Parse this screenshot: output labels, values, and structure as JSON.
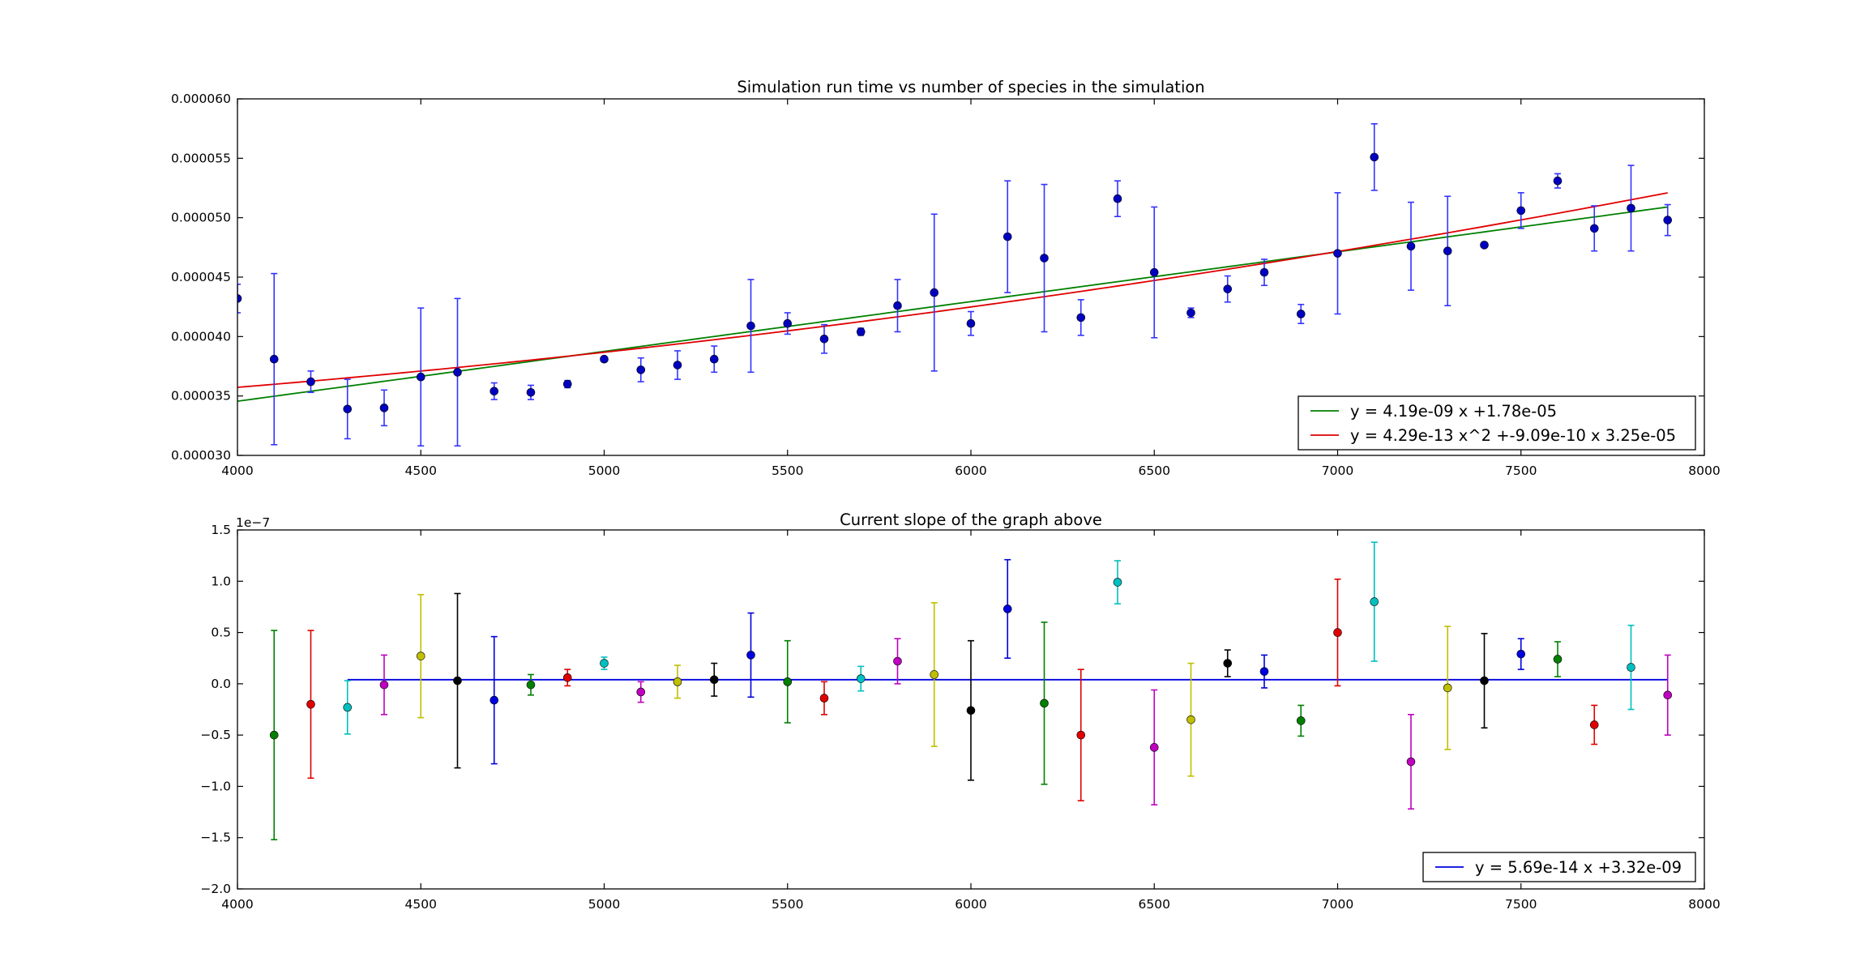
{
  "chart_data": [
    {
      "type": "scatter",
      "title": "Simulation run time vs number of species in the simulation",
      "xlabel": "",
      "ylabel": "",
      "xlim": [
        4000,
        8000
      ],
      "ylim": [
        3e-05,
        6e-05
      ],
      "xticks": [
        "4000",
        "4500",
        "5000",
        "5500",
        "6000",
        "6500",
        "7000",
        "7500",
        "8000"
      ],
      "yticks": [
        "0.000030",
        "0.000035",
        "0.000040",
        "0.000045",
        "0.000050",
        "0.000055",
        "0.000060"
      ],
      "grid": false,
      "legend_position": "bottom-right",
      "series": [
        {
          "marker_color": "#0000bf",
          "error_color": "#3333ff",
          "x": [
            4000,
            4100,
            4200,
            4300,
            4400,
            4500,
            4600,
            4700,
            4800,
            4900,
            5000,
            5100,
            5200,
            5300,
            5400,
            5500,
            5600,
            5700,
            5800,
            5900,
            6000,
            6100,
            6200,
            6300,
            6400,
            6500,
            6600,
            6700,
            6800,
            6900,
            7000,
            7100,
            7200,
            7300,
            7400,
            7500,
            7600,
            7700,
            7800,
            7900
          ],
          "y": [
            4.32e-05,
            3.81e-05,
            3.62e-05,
            3.39e-05,
            3.4e-05,
            3.66e-05,
            3.7e-05,
            3.54e-05,
            3.53e-05,
            3.6e-05,
            3.81e-05,
            3.72e-05,
            3.76e-05,
            3.81e-05,
            4.09e-05,
            4.11e-05,
            3.98e-05,
            4.04e-05,
            4.26e-05,
            4.37e-05,
            4.11e-05,
            4.84e-05,
            4.66e-05,
            4.16e-05,
            5.16e-05,
            4.54e-05,
            4.2e-05,
            4.4e-05,
            4.54e-05,
            4.19e-05,
            4.7e-05,
            5.51e-05,
            4.76e-05,
            4.72e-05,
            4.77e-05,
            5.06e-05,
            5.31e-05,
            4.91e-05,
            5.08e-05,
            4.98e-05
          ],
          "err": [
            1.2e-06,
            7.2e-06,
            9e-07,
            2.5e-06,
            1.5e-06,
            5.8e-06,
            6.2e-06,
            7e-07,
            6e-07,
            3e-07,
            2e-07,
            1e-06,
            1.2e-06,
            1.1e-06,
            3.9e-06,
            9e-07,
            1.2e-06,
            3e-07,
            2.2e-06,
            6.6e-06,
            1e-06,
            4.7e-06,
            6.2e-06,
            1.5e-06,
            1.5e-06,
            5.5e-06,
            4e-07,
            1.1e-06,
            1.1e-06,
            8e-07,
            5.1e-06,
            2.8e-06,
            3.7e-06,
            4.6e-06,
            2e-07,
            1.5e-06,
            6e-07,
            1.9e-06,
            3.6e-06,
            1.3e-06
          ]
        }
      ],
      "lines": [
        {
          "name": "y = 4.19e-09 x +1.78e-05",
          "color": "#008000",
          "kind": "linear",
          "coef": [
            4.19e-09,
            1.78e-05
          ],
          "x_range": [
            4000,
            7900
          ]
        },
        {
          "name": "y = 4.29e-13 x^2 +-9.09e-10 x 3.25e-05",
          "color": "#e00000",
          "kind": "quadratic",
          "coef": [
            4.29e-13,
            -9.09e-10,
            3.25e-05
          ],
          "x_range": [
            4000,
            7900
          ]
        }
      ]
    },
    {
      "type": "scatter",
      "title": "Current slope of the graph above",
      "xlabel": "",
      "ylabel": "",
      "offset_label": "1e−7",
      "xlim": [
        4000,
        8000
      ],
      "ylim": [
        -2.0,
        1.5
      ],
      "xticks": [
        "4000",
        "4500",
        "5000",
        "5500",
        "6000",
        "6500",
        "7000",
        "7500",
        "8000"
      ],
      "yticks": [
        "−2.0",
        "−1.5",
        "−1.0",
        "−0.5",
        "0.0",
        "0.5",
        "1.0",
        "1.5"
      ],
      "grid": false,
      "legend_position": "bottom-right",
      "cycle_colors": [
        "#008000",
        "#e00000",
        "#00bfbf",
        "#bf00bf",
        "#bfbf00",
        "#000000",
        "#0000e0"
      ],
      "points": {
        "x": [
          4100,
          4200,
          4300,
          4400,
          4500,
          4600,
          4700,
          4800,
          4900,
          5000,
          5100,
          5200,
          5300,
          5400,
          5500,
          5600,
          5700,
          5800,
          5900,
          6000,
          6100,
          6200,
          6300,
          6400,
          6500,
          6600,
          6700,
          6800,
          6900,
          7000,
          7100,
          7200,
          7300,
          7400,
          7500,
          7600,
          7700,
          7800,
          7900
        ],
        "y": [
          -0.5,
          -0.2,
          -0.23,
          -0.01,
          0.27,
          0.03,
          -0.16,
          -0.01,
          0.06,
          0.2,
          -0.08,
          0.02,
          0.04,
          0.28,
          0.02,
          -0.14,
          0.05,
          0.22,
          0.09,
          -0.26,
          0.73,
          -0.19,
          -0.5,
          0.99,
          -0.62,
          -0.35,
          0.2,
          0.12,
          -0.36,
          0.5,
          0.8,
          -0.76,
          -0.04,
          0.03,
          0.29,
          0.24,
          -0.4,
          0.16,
          -0.11
        ],
        "err": [
          1.02,
          0.72,
          0.26,
          0.29,
          0.6,
          0.85,
          0.62,
          0.1,
          0.08,
          0.06,
          0.1,
          0.16,
          0.16,
          0.41,
          0.4,
          0.16,
          0.12,
          0.22,
          0.7,
          0.68,
          0.48,
          0.79,
          0.64,
          0.21,
          0.56,
          0.55,
          0.13,
          0.16,
          0.15,
          0.52,
          0.58,
          0.46,
          0.6,
          0.46,
          0.15,
          0.17,
          0.19,
          0.41,
          0.39
        ]
      },
      "lines": [
        {
          "name": "y = 5.69e-14 x +3.32e-09",
          "color": "#0000e0",
          "kind": "constant",
          "value": 0.04,
          "x_range": [
            4300,
            7900
          ]
        }
      ]
    }
  ]
}
